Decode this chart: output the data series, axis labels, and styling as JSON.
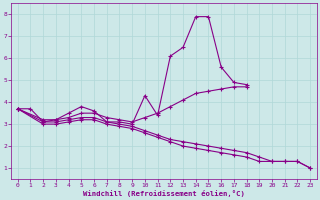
{
  "xlabel": "Windchill (Refroidissement éolien,°C)",
  "background_color": "#cde8e8",
  "line_color": "#880088",
  "xlim": [
    -0.5,
    23.5
  ],
  "ylim": [
    0.5,
    8.5
  ],
  "xticks": [
    0,
    1,
    2,
    3,
    4,
    5,
    6,
    7,
    8,
    9,
    10,
    11,
    12,
    13,
    14,
    15,
    16,
    17,
    18,
    19,
    20,
    21,
    22,
    23
  ],
  "yticks": [
    1,
    2,
    3,
    4,
    5,
    6,
    7,
    8
  ],
  "grid_color": "#b0d8d8",
  "series": [
    {
      "x": [
        0,
        1,
        2,
        3,
        4,
        5,
        6,
        7,
        8,
        9,
        10,
        11,
        12,
        13,
        14,
        15,
        16,
        17,
        18
      ],
      "y": [
        3.7,
        3.7,
        3.1,
        3.2,
        3.5,
        3.8,
        3.6,
        3.1,
        3.1,
        3.0,
        4.3,
        3.4,
        6.1,
        6.5,
        7.9,
        7.9,
        5.6,
        4.9,
        4.8
      ]
    },
    {
      "x": [
        0,
        2,
        3,
        4,
        5,
        6,
        7,
        8,
        9,
        10,
        11,
        12,
        13,
        14,
        15,
        16,
        17,
        18
      ],
      "y": [
        3.7,
        3.2,
        3.2,
        3.3,
        3.5,
        3.5,
        3.3,
        3.2,
        3.1,
        3.3,
        3.5,
        3.8,
        4.1,
        4.4,
        4.5,
        4.6,
        4.7,
        4.7
      ]
    },
    {
      "x": [
        0,
        2,
        3,
        4,
        5,
        6,
        7,
        8,
        9,
        10,
        11,
        12,
        13,
        14,
        15,
        16,
        17,
        18,
        19,
        20,
        21,
        22,
        23
      ],
      "y": [
        3.7,
        3.1,
        3.1,
        3.2,
        3.3,
        3.3,
        3.1,
        3.0,
        2.9,
        2.7,
        2.5,
        2.3,
        2.2,
        2.1,
        2.0,
        1.9,
        1.8,
        1.7,
        1.5,
        1.3,
        1.3,
        1.3,
        1.0
      ]
    },
    {
      "x": [
        0,
        2,
        3,
        4,
        5,
        6,
        7,
        8,
        9,
        10,
        11,
        12,
        13,
        14,
        15,
        16,
        17,
        18,
        19,
        20,
        21,
        22,
        23
      ],
      "y": [
        3.7,
        3.0,
        3.0,
        3.1,
        3.2,
        3.2,
        3.0,
        2.9,
        2.8,
        2.6,
        2.4,
        2.2,
        2.0,
        1.9,
        1.8,
        1.7,
        1.6,
        1.5,
        1.3,
        1.3,
        1.3,
        1.3,
        1.0
      ]
    }
  ]
}
